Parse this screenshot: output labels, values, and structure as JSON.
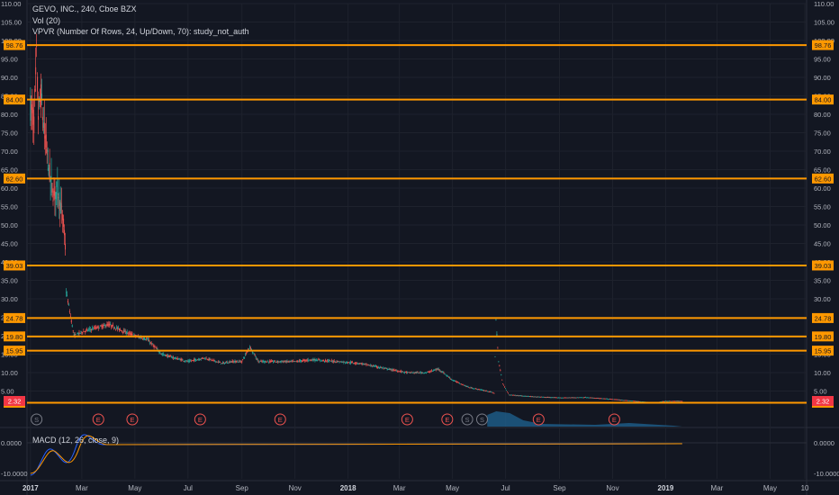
{
  "header": {
    "symbol_line": "GEVO, INC., 240, Cboe BZX",
    "volume_line": "Vol (20)",
    "vpvr_line": "VPVR (Number Of Rows, 24, Up/Down, 70): study_not_auth"
  },
  "macd": {
    "label": "MACD (12, 26, close, 9)",
    "ticks": [
      "0.0000",
      "-10.0000"
    ]
  },
  "colors": {
    "background": "#131722",
    "grid": "#1e222d",
    "level_line": "#ff9800",
    "candle_up": "#26a69a",
    "candle_down": "#ef5350",
    "last_price": "#f23645",
    "volume_profile": "#1e5f8c",
    "macd_line": "#2962ff",
    "signal_line": "#ff9800"
  },
  "chart_data": {
    "type": "candlestick",
    "y_axis": {
      "ylim": [
        0,
        110
      ],
      "ticks": [
        "110.00",
        "105.00",
        "100.00",
        "95.00",
        "90.00",
        "85.00",
        "80.00",
        "75.00",
        "70.00",
        "65.00",
        "60.00",
        "55.00",
        "50.00",
        "45.00",
        "40.00",
        "35.00",
        "30.00",
        "25.00",
        "20.00",
        "15.00",
        "10.00",
        "5.00"
      ]
    },
    "x_axis": {
      "ticks": [
        "2017",
        "Mar",
        "May",
        "Jul",
        "Sep",
        "Nov",
        "2018",
        "Mar",
        "May",
        "Jul",
        "Sep",
        "Nov",
        "2019",
        "Mar",
        "May",
        "10"
      ],
      "range": [
        "2016-12-28",
        "2019-06-12"
      ]
    },
    "horizontal_levels": [
      {
        "value": 98.76,
        "label": "98.76"
      },
      {
        "value": 84.0,
        "label": "84.00"
      },
      {
        "value": 62.6,
        "label": "62.60"
      },
      {
        "value": 39.03,
        "label": "39.03"
      },
      {
        "value": 24.78,
        "label": "24.78"
      },
      {
        "value": 19.8,
        "label": "19.80"
      },
      {
        "value": 15.95,
        "label": "15.95"
      },
      {
        "value": 1.84,
        "label": "1.84"
      }
    ],
    "last_price": {
      "value": 2.32,
      "label": "2.32"
    },
    "price_path": [
      [
        "2017-01-01",
        82
      ],
      [
        "2017-01-05",
        78
      ],
      [
        "2017-01-08",
        95
      ],
      [
        "2017-01-10",
        80
      ],
      [
        "2017-01-13",
        85
      ],
      [
        "2017-01-17",
        75
      ],
      [
        "2017-01-20",
        70
      ],
      [
        "2017-01-24",
        62
      ],
      [
        "2017-01-28",
        58
      ],
      [
        "2017-02-01",
        60
      ],
      [
        "2017-02-05",
        55
      ],
      [
        "2017-02-08",
        50
      ],
      [
        "2017-02-10",
        44
      ],
      [
        "2017-02-11",
        32
      ],
      [
        "2017-02-14",
        28
      ],
      [
        "2017-02-20",
        20
      ],
      [
        "2017-03-01",
        21
      ],
      [
        "2017-03-15",
        22
      ],
      [
        "2017-04-01",
        23
      ],
      [
        "2017-04-20",
        21
      ],
      [
        "2017-05-01",
        20
      ],
      [
        "2017-05-15",
        19
      ],
      [
        "2017-06-01",
        15
      ],
      [
        "2017-06-15",
        14
      ],
      [
        "2017-07-01",
        13
      ],
      [
        "2017-07-20",
        14
      ],
      [
        "2017-08-10",
        12.5
      ],
      [
        "2017-08-20",
        13
      ],
      [
        "2017-09-01",
        13
      ],
      [
        "2017-09-10",
        17
      ],
      [
        "2017-09-20",
        13
      ],
      [
        "2017-10-10",
        13
      ],
      [
        "2017-11-01",
        13
      ],
      [
        "2017-11-20",
        13.5
      ],
      [
        "2017-12-20",
        13
      ],
      [
        "2018-01-15",
        12.5
      ],
      [
        "2018-02-15",
        11
      ],
      [
        "2018-03-10",
        10
      ],
      [
        "2018-04-01",
        10
      ],
      [
        "2018-04-15",
        11
      ],
      [
        "2018-05-01",
        8
      ],
      [
        "2018-05-20",
        6
      ],
      [
        "2018-06-10",
        5
      ],
      [
        "2018-06-18",
        4.5
      ],
      [
        "2018-06-20",
        24
      ],
      [
        "2018-06-23",
        13
      ],
      [
        "2018-06-28",
        7
      ],
      [
        "2018-07-05",
        4
      ],
      [
        "2018-08-01",
        3.5
      ],
      [
        "2018-09-01",
        3.2
      ],
      [
        "2018-10-01",
        3.3
      ],
      [
        "2018-11-01",
        2.8
      ],
      [
        "2018-12-01",
        2.2
      ],
      [
        "2018-12-20",
        1.9
      ],
      [
        "2019-01-01",
        2.3
      ],
      [
        "2019-01-20",
        2.3
      ]
    ],
    "event_markers": [
      {
        "date": "2017-01-08",
        "type": "S"
      },
      {
        "date": "2017-03-20",
        "type": "E"
      },
      {
        "date": "2017-04-28",
        "type": "E"
      },
      {
        "date": "2017-07-15",
        "type": "E"
      },
      {
        "date": "2017-10-15",
        "type": "E"
      },
      {
        "date": "2018-03-10",
        "type": "E"
      },
      {
        "date": "2018-04-25",
        "type": "E"
      },
      {
        "date": "2018-05-18",
        "type": "S"
      },
      {
        "date": "2018-06-04",
        "type": "S"
      },
      {
        "date": "2018-08-08",
        "type": "E"
      },
      {
        "date": "2018-11-03",
        "type": "E"
      }
    ]
  }
}
